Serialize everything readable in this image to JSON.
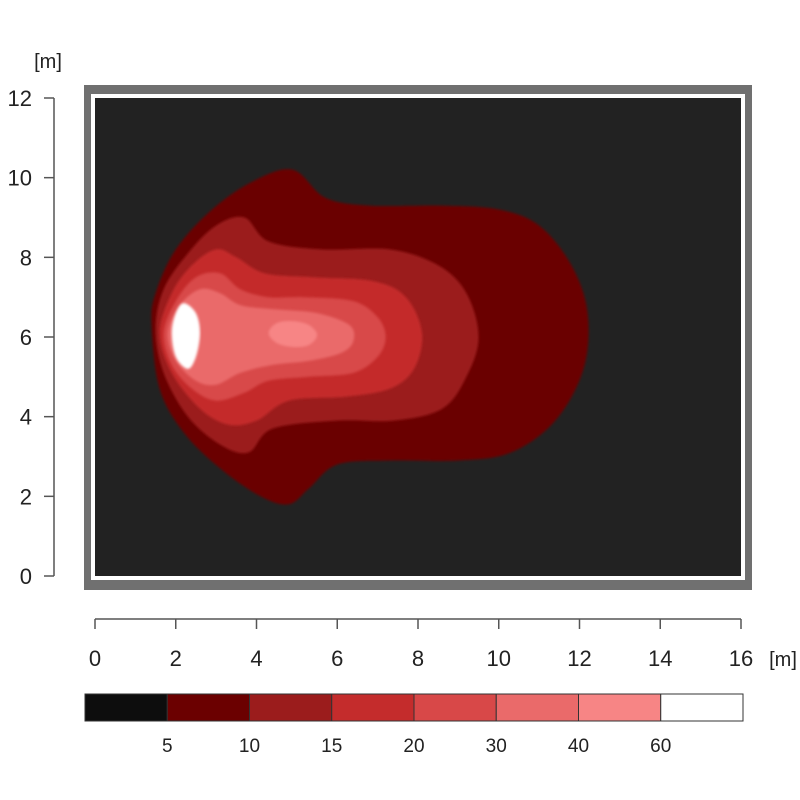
{
  "chart_data": {
    "type": "heatmap",
    "title": "",
    "xlabel": "[m]",
    "ylabel": "[m]",
    "xlim": [
      0,
      16
    ],
    "ylim": [
      0,
      12
    ],
    "x_ticks": [
      "0",
      "2",
      "4",
      "6",
      "8",
      "10",
      "12",
      "14",
      "16"
    ],
    "y_ticks": [
      "0",
      "2",
      "4",
      "6",
      "8",
      "10",
      "12"
    ],
    "grid": false,
    "legend": {
      "placement": "bottom",
      "breaks": [
        "5",
        "10",
        "15",
        "20",
        "30",
        "40",
        "60"
      ],
      "colors": [
        "#0d0d0d",
        "#6b0000",
        "#9b1c1c",
        "#c42c2c",
        "#d84848",
        "#ea6a6a",
        "#f78585",
        "#ffffff"
      ]
    },
    "background_color": "#222222",
    "frame_color": "#707070",
    "source_point": {
      "x": 2.2,
      "y": 6.1
    },
    "secondary_peak": {
      "x": 4.8,
      "y": 6.05
    },
    "contours": [
      {
        "level": "5",
        "color": "#6b0000",
        "points": [
          [
            1.4,
            6.3
          ],
          [
            1.5,
            7.1
          ],
          [
            2.0,
            8.2
          ],
          [
            2.9,
            9.2
          ],
          [
            3.9,
            9.9
          ],
          [
            4.9,
            10.2
          ],
          [
            5.7,
            9.5
          ],
          [
            6.8,
            9.3
          ],
          [
            8.6,
            9.3
          ],
          [
            10.0,
            9.2
          ],
          [
            11.0,
            8.8
          ],
          [
            11.8,
            7.8
          ],
          [
            12.2,
            6.6
          ],
          [
            12.1,
            5.2
          ],
          [
            11.4,
            3.9
          ],
          [
            10.3,
            3.1
          ],
          [
            9.0,
            2.9
          ],
          [
            7.3,
            2.9
          ],
          [
            6.0,
            2.8
          ],
          [
            5.3,
            2.2
          ],
          [
            4.8,
            1.8
          ],
          [
            4.1,
            2.0
          ],
          [
            3.1,
            2.7
          ],
          [
            2.2,
            3.6
          ],
          [
            1.6,
            4.7
          ]
        ]
      },
      {
        "level": "10",
        "color": "#9b1c1c",
        "points": [
          [
            1.5,
            6.2
          ],
          [
            1.7,
            7.2
          ],
          [
            2.3,
            8.1
          ],
          [
            3.0,
            8.8
          ],
          [
            3.7,
            9.0
          ],
          [
            4.3,
            8.4
          ],
          [
            5.6,
            8.2
          ],
          [
            7.3,
            8.2
          ],
          [
            8.5,
            7.8
          ],
          [
            9.2,
            7.1
          ],
          [
            9.5,
            6.0
          ],
          [
            9.2,
            5.0
          ],
          [
            8.6,
            4.2
          ],
          [
            7.4,
            3.9
          ],
          [
            6.0,
            3.9
          ],
          [
            4.4,
            3.7
          ],
          [
            3.8,
            3.1
          ],
          [
            3.1,
            3.3
          ],
          [
            2.3,
            4.0
          ],
          [
            1.7,
            5.1
          ]
        ]
      },
      {
        "level": "15",
        "color": "#c42c2c",
        "points": [
          [
            1.6,
            6.1
          ],
          [
            1.9,
            7.1
          ],
          [
            2.4,
            7.8
          ],
          [
            3.0,
            8.2
          ],
          [
            3.5,
            8.0
          ],
          [
            4.2,
            7.6
          ],
          [
            5.4,
            7.5
          ],
          [
            6.9,
            7.4
          ],
          [
            7.7,
            7.0
          ],
          [
            8.1,
            6.1
          ],
          [
            7.9,
            5.2
          ],
          [
            7.3,
            4.7
          ],
          [
            6.2,
            4.5
          ],
          [
            4.8,
            4.4
          ],
          [
            4.0,
            3.9
          ],
          [
            3.3,
            3.8
          ],
          [
            2.6,
            4.2
          ],
          [
            1.9,
            5.1
          ]
        ]
      },
      {
        "level": "20",
        "color": "#d84848",
        "points": [
          [
            1.7,
            6.1
          ],
          [
            2.0,
            6.9
          ],
          [
            2.5,
            7.5
          ],
          [
            3.1,
            7.6
          ],
          [
            3.6,
            7.2
          ],
          [
            4.3,
            7.0
          ],
          [
            5.2,
            7.0
          ],
          [
            6.4,
            6.9
          ],
          [
            7.0,
            6.5
          ],
          [
            7.2,
            6.0
          ],
          [
            7.0,
            5.5
          ],
          [
            6.4,
            5.1
          ],
          [
            5.3,
            5.0
          ],
          [
            4.3,
            4.9
          ],
          [
            3.7,
            4.6
          ],
          [
            3.0,
            4.4
          ],
          [
            2.4,
            4.7
          ],
          [
            1.9,
            5.3
          ]
        ]
      },
      {
        "level": "30",
        "color": "#ea6a6a",
        "points": [
          [
            1.8,
            6.1
          ],
          [
            2.1,
            6.8
          ],
          [
            2.6,
            7.2
          ],
          [
            3.1,
            7.1
          ],
          [
            3.6,
            6.8
          ],
          [
            4.4,
            6.7
          ],
          [
            5.5,
            6.6
          ],
          [
            6.3,
            6.3
          ],
          [
            6.4,
            5.9
          ],
          [
            6.1,
            5.6
          ],
          [
            5.3,
            5.4
          ],
          [
            4.4,
            5.3
          ],
          [
            3.6,
            5.1
          ],
          [
            3.0,
            4.8
          ],
          [
            2.5,
            4.9
          ],
          [
            2.0,
            5.4
          ]
        ]
      },
      {
        "level": "40",
        "color": "#f78585",
        "points": [
          [
            4.3,
            6.1
          ],
          [
            4.5,
            6.35
          ],
          [
            4.9,
            6.4
          ],
          [
            5.3,
            6.3
          ],
          [
            5.5,
            6.05
          ],
          [
            5.3,
            5.8
          ],
          [
            4.9,
            5.75
          ],
          [
            4.5,
            5.85
          ]
        ]
      },
      {
        "level": "60",
        "color": "#ffffff",
        "points": [
          [
            1.9,
            6.1
          ],
          [
            2.0,
            6.6
          ],
          [
            2.2,
            6.85
          ],
          [
            2.5,
            6.6
          ],
          [
            2.6,
            6.1
          ],
          [
            2.5,
            5.5
          ],
          [
            2.3,
            5.2
          ],
          [
            2.0,
            5.5
          ]
        ]
      }
    ]
  }
}
